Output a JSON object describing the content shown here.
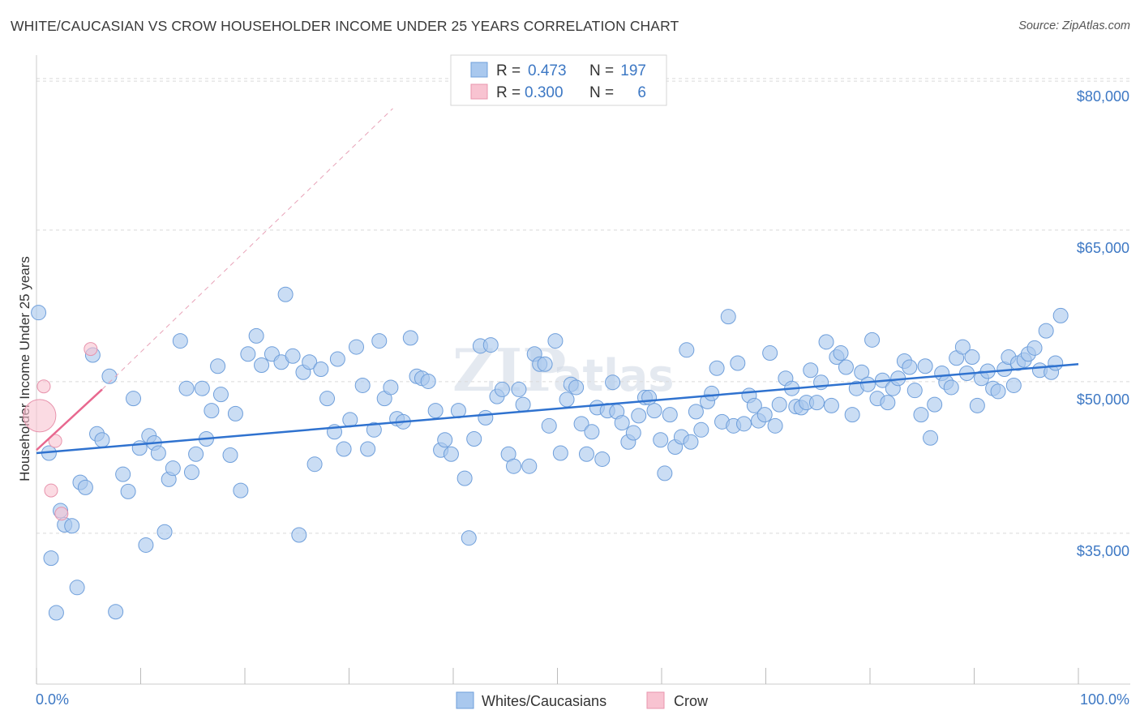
{
  "title": "WHITE/CAUCASIAN VS CROW HOUSEHOLDER INCOME UNDER 25 YEARS CORRELATION CHART",
  "source": "Source: ZipAtlas.com",
  "watermark": {
    "left": "ZIP",
    "right": "atlas"
  },
  "legend": {
    "rows": [
      {
        "r_label": "R =",
        "r_value": "0.473",
        "n_label": "N =",
        "n_value": "197",
        "color": "#a9c8ee"
      },
      {
        "r_label": "R =",
        "r_value": "0.300",
        "n_label": "N =",
        "n_value": "6",
        "color": "#f6b8c8"
      }
    ]
  },
  "bottom_legend": [
    {
      "label": "Whites/Caucasians",
      "color": "#a9c8ee"
    },
    {
      "label": "Crow",
      "color": "#f6b8c8"
    }
  ],
  "colors": {
    "blue_fill": "#a9c8ee",
    "blue_stroke": "#6f9fdb",
    "blue_line": "#2f72cf",
    "pink_fill": "#f8c3d1",
    "pink_stroke": "#e894ad",
    "pink_line": "#e8688f",
    "grid": "#d9d9d9",
    "axis_text": "#3d78c4"
  },
  "chart_data": {
    "type": "scatter",
    "title": "WHITE/CAUCASIAN VS CROW HOUSEHOLDER INCOME UNDER 25 YEARS CORRELATION CHART",
    "xlabel": "",
    "ylabel": "Householder Income Under 25 years",
    "x_tick_labels": [
      "0.0%",
      "100.0%"
    ],
    "y_tick_labels": [
      "$80,000",
      "$65,000",
      "$50,000",
      "$35,000"
    ],
    "y_ticks": [
      80000,
      65000,
      50000,
      35000
    ],
    "xlim": [
      0,
      100
    ],
    "ylim": [
      22000,
      84000
    ],
    "grid": true,
    "series": [
      {
        "name": "Whites/Caucasians",
        "r": 0.473,
        "n": 197,
        "trend": {
          "x": [
            0,
            100
          ],
          "y": [
            44700,
            53500
          ]
        },
        "points": [
          [
            0.2,
            58600
          ],
          [
            1.2,
            44700
          ],
          [
            1.4,
            34300
          ],
          [
            1.9,
            28900
          ],
          [
            2.3,
            39000
          ],
          [
            2.7,
            37600
          ],
          [
            3.4,
            37500
          ],
          [
            3.9,
            31400
          ],
          [
            4.2,
            41800
          ],
          [
            4.7,
            41300
          ],
          [
            5.4,
            54400
          ],
          [
            5.8,
            46600
          ],
          [
            6.3,
            46000
          ],
          [
            7.0,
            52300
          ],
          [
            7.6,
            29000
          ],
          [
            8.3,
            42600
          ],
          [
            8.8,
            40900
          ],
          [
            9.3,
            50100
          ],
          [
            9.9,
            45200
          ],
          [
            10.5,
            35600
          ],
          [
            10.8,
            46400
          ],
          [
            11.3,
            45700
          ],
          [
            11.7,
            44700
          ],
          [
            12.3,
            36900
          ],
          [
            12.7,
            42100
          ],
          [
            13.1,
            43200
          ],
          [
            13.8,
            55800
          ],
          [
            14.4,
            51100
          ],
          [
            14.9,
            42800
          ],
          [
            15.3,
            44600
          ],
          [
            15.9,
            51100
          ],
          [
            16.3,
            46100
          ],
          [
            16.8,
            48900
          ],
          [
            17.4,
            53300
          ],
          [
            17.7,
            50500
          ],
          [
            18.6,
            44500
          ],
          [
            19.1,
            48600
          ],
          [
            19.6,
            41000
          ],
          [
            20.3,
            54500
          ],
          [
            21.1,
            56300
          ],
          [
            21.6,
            53400
          ],
          [
            22.6,
            54500
          ],
          [
            23.5,
            53700
          ],
          [
            23.9,
            60400
          ],
          [
            24.6,
            54300
          ],
          [
            25.2,
            36600
          ],
          [
            25.6,
            52700
          ],
          [
            26.2,
            53700
          ],
          [
            26.7,
            43600
          ],
          [
            27.3,
            53000
          ],
          [
            27.9,
            50100
          ],
          [
            28.6,
            46800
          ],
          [
            28.9,
            54000
          ],
          [
            29.5,
            45100
          ],
          [
            30.1,
            48000
          ],
          [
            30.7,
            55200
          ],
          [
            31.3,
            51400
          ],
          [
            31.8,
            45100
          ],
          [
            32.4,
            47000
          ],
          [
            32.9,
            55800
          ],
          [
            33.4,
            50100
          ],
          [
            34.0,
            51200
          ],
          [
            34.6,
            48100
          ],
          [
            35.2,
            47800
          ],
          [
            35.9,
            56100
          ],
          [
            36.5,
            52300
          ],
          [
            37.0,
            52100
          ],
          [
            37.6,
            51800
          ],
          [
            38.3,
            48900
          ],
          [
            38.8,
            45000
          ],
          [
            39.2,
            46000
          ],
          [
            39.8,
            44600
          ],
          [
            40.5,
            48900
          ],
          [
            41.1,
            42200
          ],
          [
            41.5,
            36300
          ],
          [
            42.0,
            46100
          ],
          [
            42.6,
            55300
          ],
          [
            43.1,
            48200
          ],
          [
            43.6,
            55400
          ],
          [
            44.2,
            50300
          ],
          [
            44.7,
            51000
          ],
          [
            45.3,
            44600
          ],
          [
            45.8,
            43400
          ],
          [
            46.3,
            51000
          ],
          [
            46.7,
            49500
          ],
          [
            47.3,
            43400
          ],
          [
            47.8,
            54500
          ],
          [
            48.3,
            53500
          ],
          [
            48.8,
            53500
          ],
          [
            49.2,
            47400
          ],
          [
            49.8,
            55800
          ],
          [
            50.3,
            44700
          ],
          [
            50.9,
            50000
          ],
          [
            51.3,
            51500
          ],
          [
            51.8,
            51200
          ],
          [
            52.3,
            47600
          ],
          [
            52.8,
            44600
          ],
          [
            53.3,
            46800
          ],
          [
            53.8,
            49200
          ],
          [
            54.3,
            44100
          ],
          [
            54.8,
            48900
          ],
          [
            55.3,
            51700
          ],
          [
            55.7,
            48800
          ],
          [
            56.2,
            47700
          ],
          [
            56.8,
            45800
          ],
          [
            57.3,
            46700
          ],
          [
            57.8,
            48400
          ],
          [
            58.4,
            50200
          ],
          [
            58.8,
            50200
          ],
          [
            59.3,
            48900
          ],
          [
            59.9,
            46000
          ],
          [
            60.3,
            42700
          ],
          [
            60.8,
            48500
          ],
          [
            61.3,
            45300
          ],
          [
            61.9,
            46300
          ],
          [
            62.4,
            54900
          ],
          [
            62.8,
            45800
          ],
          [
            63.3,
            48800
          ],
          [
            63.8,
            47000
          ],
          [
            64.4,
            49800
          ],
          [
            64.8,
            50600
          ],
          [
            65.3,
            53100
          ],
          [
            65.8,
            47800
          ],
          [
            66.4,
            58200
          ],
          [
            66.9,
            47400
          ],
          [
            67.3,
            53600
          ],
          [
            67.9,
            47600
          ],
          [
            68.4,
            50400
          ],
          [
            68.9,
            49400
          ],
          [
            69.3,
            47900
          ],
          [
            69.9,
            48500
          ],
          [
            70.4,
            54600
          ],
          [
            70.9,
            47400
          ],
          [
            71.3,
            49500
          ],
          [
            71.9,
            52100
          ],
          [
            72.5,
            51100
          ],
          [
            72.9,
            49300
          ],
          [
            73.4,
            49200
          ],
          [
            73.9,
            49700
          ],
          [
            74.3,
            52900
          ],
          [
            74.9,
            49700
          ],
          [
            75.3,
            51700
          ],
          [
            75.8,
            55700
          ],
          [
            76.3,
            49400
          ],
          [
            76.8,
            54200
          ],
          [
            77.2,
            54600
          ],
          [
            77.7,
            53200
          ],
          [
            78.3,
            48500
          ],
          [
            78.7,
            51100
          ],
          [
            79.2,
            52700
          ],
          [
            79.8,
            51500
          ],
          [
            80.2,
            55900
          ],
          [
            80.7,
            50100
          ],
          [
            81.2,
            51900
          ],
          [
            81.7,
            49700
          ],
          [
            82.2,
            51100
          ],
          [
            82.7,
            52100
          ],
          [
            83.3,
            53800
          ],
          [
            83.8,
            53200
          ],
          [
            84.3,
            50900
          ],
          [
            84.9,
            48500
          ],
          [
            85.3,
            53300
          ],
          [
            85.8,
            46200
          ],
          [
            86.2,
            49500
          ],
          [
            86.9,
            52600
          ],
          [
            87.3,
            51700
          ],
          [
            87.8,
            51200
          ],
          [
            88.3,
            54100
          ],
          [
            88.9,
            55200
          ],
          [
            89.3,
            52600
          ],
          [
            89.8,
            54200
          ],
          [
            90.3,
            49400
          ],
          [
            90.7,
            52100
          ],
          [
            91.3,
            52800
          ],
          [
            91.8,
            51100
          ],
          [
            92.3,
            50800
          ],
          [
            92.9,
            53000
          ],
          [
            93.3,
            54200
          ],
          [
            93.8,
            51400
          ],
          [
            94.2,
            53600
          ],
          [
            94.8,
            53900
          ],
          [
            95.2,
            54500
          ],
          [
            95.8,
            55100
          ],
          [
            96.3,
            52900
          ],
          [
            96.9,
            56800
          ],
          [
            97.4,
            52700
          ],
          [
            97.8,
            53600
          ],
          [
            98.3,
            58300
          ]
        ]
      },
      {
        "name": "Crow",
        "r": 0.3,
        "n": 6,
        "trend": {
          "x": [
            0,
            6.3
          ],
          "y": [
            45000,
            51000
          ]
        },
        "dashed_extension": {
          "x": [
            6.3,
            34.2
          ],
          "y": [
            51000,
            78800
          ]
        },
        "points": [
          [
            0.3,
            48400
          ],
          [
            0.7,
            51300
          ],
          [
            1.4,
            41000
          ],
          [
            1.8,
            45900
          ],
          [
            2.4,
            38700
          ],
          [
            5.2,
            55000
          ]
        ]
      }
    ]
  }
}
